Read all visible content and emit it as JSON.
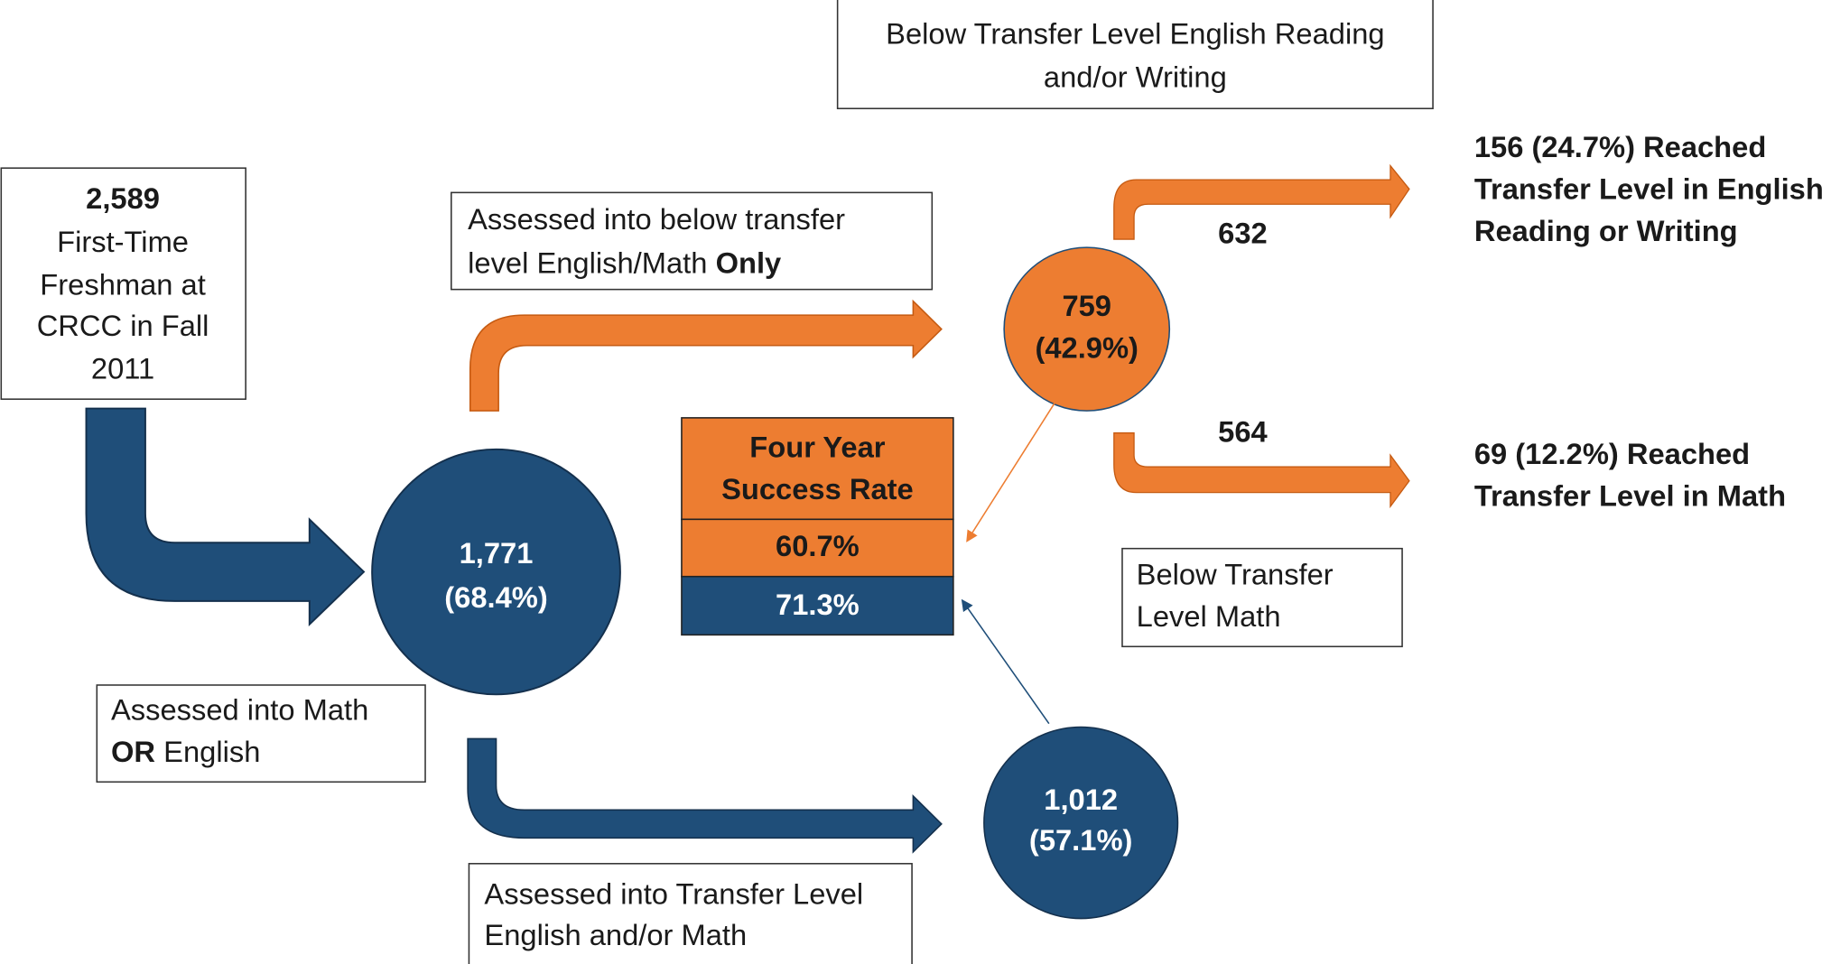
{
  "start_box": {
    "count": "2,589",
    "lines": [
      "First-Time",
      "Freshman at",
      "CRCC in Fall",
      "2011"
    ]
  },
  "assessed_box": {
    "line1": "Assessed into Math",
    "line2_bold": "OR",
    "line2_rest": "English"
  },
  "center_node": {
    "count": "1,771",
    "percent": "(68.4%)"
  },
  "below_only_box": {
    "line1": "Assessed into below transfer",
    "line2_rest": "level English/Math",
    "line2_bold": "Only"
  },
  "transfer_box": {
    "lines": [
      "Assessed into Transfer Level",
      "English and/or Math"
    ]
  },
  "below_node": {
    "count": "759",
    "percent": "(42.9%)"
  },
  "transfer_node": {
    "count": "1,012",
    "percent": "(57.1%)"
  },
  "success_table": {
    "header": [
      "Four Year",
      "Success Rate"
    ],
    "rows": [
      "60.7%",
      "71.3%"
    ]
  },
  "english_box": {
    "lines": [
      "Below Transfer Level English Reading",
      "and/or Writing"
    ]
  },
  "math_box": {
    "lines": [
      "Below Transfer",
      "Level Math"
    ]
  },
  "english_count": "632",
  "math_count": "564",
  "english_result": {
    "lines": [
      "156 (24.7%) Reached",
      "Transfer Level in English",
      "Reading or Writing"
    ]
  },
  "math_result": {
    "lines": [
      "69 (12.2%) Reached",
      "Transfer Level in Math"
    ]
  }
}
